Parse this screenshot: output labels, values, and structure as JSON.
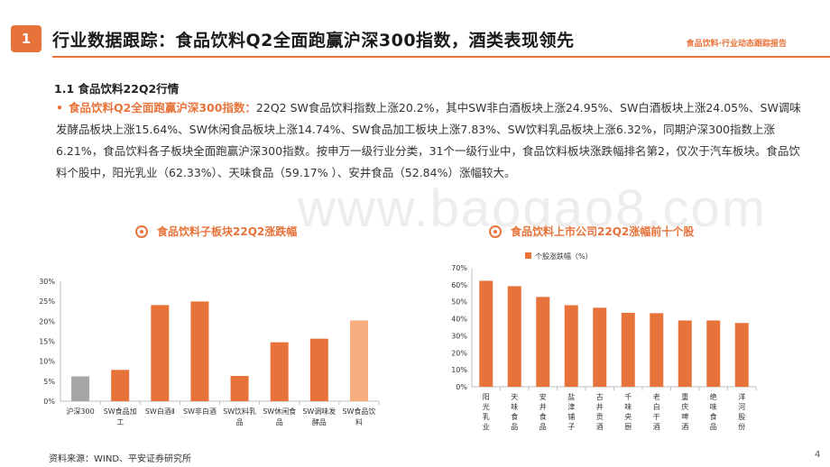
{
  "header": {
    "number": "1",
    "title": "行业数据跟踪：食品饮料Q2全面跑赢沪深300指数，酒类表现领先",
    "brand": "食品饮料·行业动态跟踪报告"
  },
  "section": {
    "subtitle": "1.1 食品饮料22Q2行情",
    "bullet": "•",
    "highlight": "食品饮料Q2全面跑赢沪深300指数：",
    "body": "22Q2 SW食品饮料指数上涨20.2%，其中SW非白酒板块上涨24.95%、SW白酒板块上涨24.05%、SW调味发酵品板块上涨15.64%、SW休闲食品板块上涨14.74%、SW食品加工板块上涨7.83%、SW饮料乳品板块上涨6.32%，同期沪深300指数上涨6.21%，食品饮料各子板块全面跑赢沪深300指数。按申万一级行业分类，31个一级行业中，食品饮料板块涨跌幅排名第2，仅次于汽车板块。食品饮料个股中，阳光乳业（62.33%）、天味食品（59.17% ）、安井食品（52.84%）涨幅较大。"
  },
  "watermark": "www.baogao8.com",
  "colors": {
    "accent": "#e8733a",
    "gray": "#a6a6a6",
    "light": "#f8ad7e"
  },
  "chart_data": [
    {
      "type": "bar",
      "title": "食品饮料子板块22Q2涨跌幅",
      "categories": [
        "沪深300",
        "SW食品加工",
        "SW白酒Ⅱ",
        "SW非白酒",
        "SW饮料乳品",
        "SW休闲食品",
        "SW调味发酵品",
        "SW食品饮料"
      ],
      "values": [
        6.21,
        7.83,
        24.05,
        24.95,
        6.32,
        14.74,
        15.64,
        20.2
      ],
      "bar_colors": [
        "#a6a6a6",
        "#e8733a",
        "#e8733a",
        "#e8733a",
        "#e8733a",
        "#e8733a",
        "#e8733a",
        "#f8ad7e"
      ],
      "yticks": [
        "0%",
        "5%",
        "10%",
        "15%",
        "20%",
        "25%",
        "30%"
      ],
      "ylim": [
        0,
        30
      ],
      "grid": false,
      "legend": false
    },
    {
      "type": "bar",
      "title": "食品饮料上市公司22Q2涨幅前十个股",
      "legend_label": "个股涨跌幅（%）",
      "legend_position": "top-left",
      "categories": [
        "阳光乳业",
        "天味食品",
        "安井食品",
        "盐津铺子",
        "古井贡酒",
        "千味央厨",
        "老白干酒",
        "重庆啤酒",
        "绝味食品",
        "洋河股份"
      ],
      "values": [
        62.33,
        59.17,
        52.84,
        48,
        46.5,
        43.5,
        43.3,
        39,
        39,
        37.5
      ],
      "yticks": [
        "0%",
        "10%",
        "20%",
        "30%",
        "40%",
        "50%",
        "60%",
        "70%"
      ],
      "ylim": [
        0,
        70
      ],
      "grid": false
    }
  ],
  "footer": {
    "source": "资料来源：WIND、平安证券研究所",
    "page": "4"
  }
}
